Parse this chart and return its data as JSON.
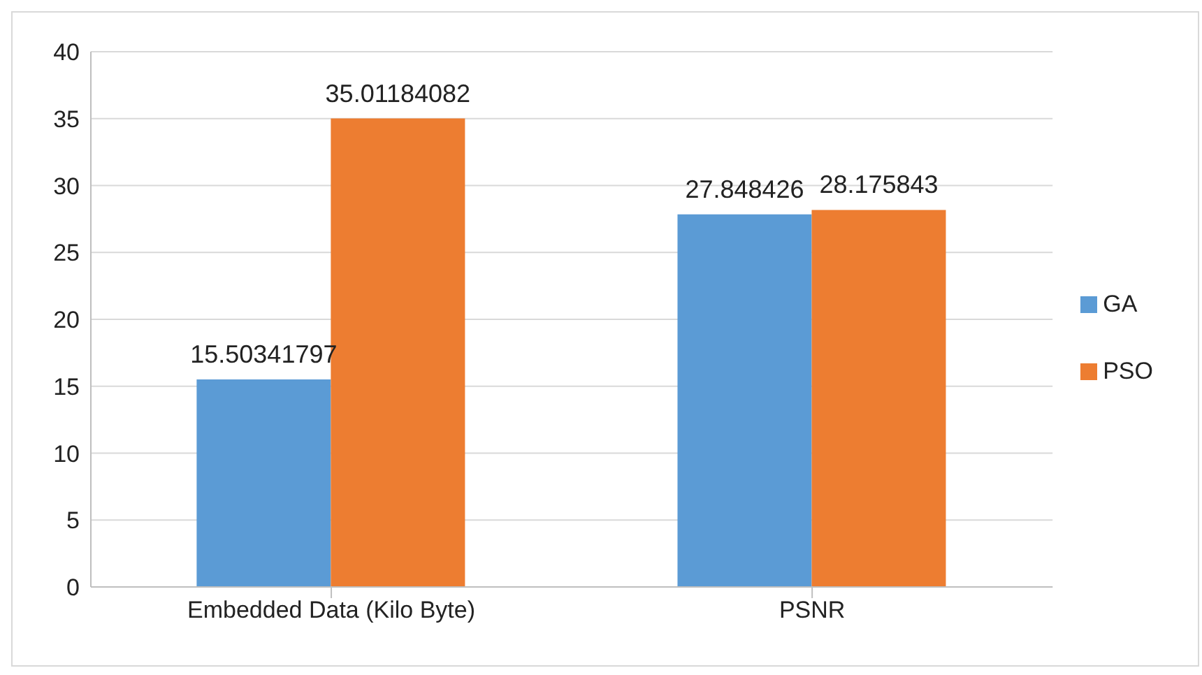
{
  "chart_data": {
    "type": "bar",
    "categories": [
      "Embedded Data (Kilo Byte)",
      "PSNR"
    ],
    "series": [
      {
        "name": "GA",
        "color": "#5b9bd5",
        "values": [
          15.50341797,
          27.848426
        ]
      },
      {
        "name": "PSO",
        "color": "#ed7d31",
        "values": [
          35.01184082,
          28.175843
        ]
      }
    ],
    "ylim": [
      0,
      40
    ],
    "yticks": [
      0,
      5,
      10,
      15,
      20,
      25,
      30,
      35,
      40
    ],
    "grid": "y",
    "legend": "right",
    "data_labels": true
  }
}
